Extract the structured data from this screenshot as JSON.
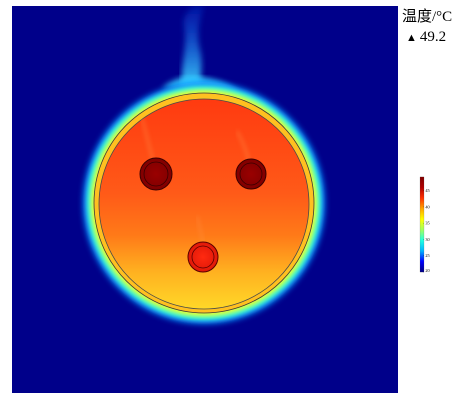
{
  "colorbar": {
    "title": "温度/°C",
    "max_marker": "▲",
    "max_value": "49.2",
    "min": 20,
    "max": 49.2,
    "ticks": [
      20,
      25,
      30,
      35,
      40,
      45
    ],
    "stops": [
      "#00007f",
      "#0000ff",
      "#00b4ff",
      "#20ffe0",
      "#a0ff60",
      "#ffff00",
      "#ffa500",
      "#ff3000",
      "#b00000",
      "#7f0000"
    ]
  },
  "chart_data": {
    "type": "heatmap",
    "title": "",
    "colorbar_label": "温度/°C",
    "range": [
      20,
      49.2
    ],
    "max": 49.2,
    "background_temperature": 20,
    "disk_temperature_range": [
      38,
      46
    ],
    "holes": [
      {
        "position": "upper-left",
        "temperature": 49
      },
      {
        "position": "upper-right",
        "temperature": 48.5
      },
      {
        "position": "lower-center",
        "temperature": 47
      }
    ]
  }
}
